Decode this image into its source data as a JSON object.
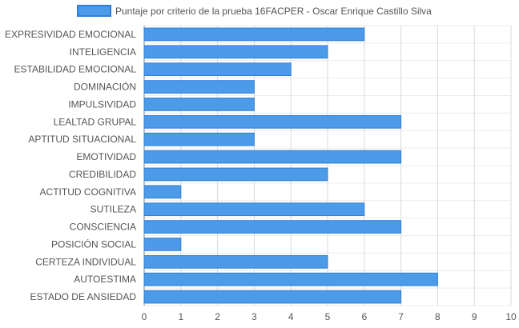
{
  "chart_data": {
    "type": "bar",
    "orientation": "horizontal",
    "categories": [
      "EXPRESIVIDAD EMOCIONAL",
      "INTELIGENCIA",
      "ESTABILIDAD EMOCIONAL",
      "DOMINACIÓN",
      "IMPULSIVIDAD",
      "LEALTAD GRUPAL",
      "APTITUD SITUACIONAL",
      "EMOTIVIDAD",
      "CREDIBILIDAD",
      "ACTITUD COGNITIVA",
      "SUTILEZA",
      "CONSCIENCIA",
      "POSICIÓN SOCIAL",
      "CERTEZA INDIVIDUAL",
      "AUTOESTIMA",
      "ESTADO DE ANSIEDAD"
    ],
    "series": [
      {
        "name": "Puntaje por criterio de la prueba 16FACPER - Oscar Enrique Castillo Silva",
        "values": [
          6,
          5,
          4,
          3,
          3,
          7,
          3,
          7,
          5,
          1,
          6,
          7,
          1,
          5,
          8,
          7
        ]
      }
    ],
    "xlim": [
      0,
      10
    ],
    "xticks": [
      "0",
      "1",
      "2",
      "3",
      "4",
      "5",
      "6",
      "7",
      "8",
      "9",
      "10"
    ],
    "grid": true,
    "legend_position": "top",
    "colors": {
      "bar_fill": "#4b9be8",
      "bar_stroke": "#2f7fd6",
      "grid": "#d9d9d9",
      "axis_line": "#888888",
      "text": "#555555"
    }
  }
}
